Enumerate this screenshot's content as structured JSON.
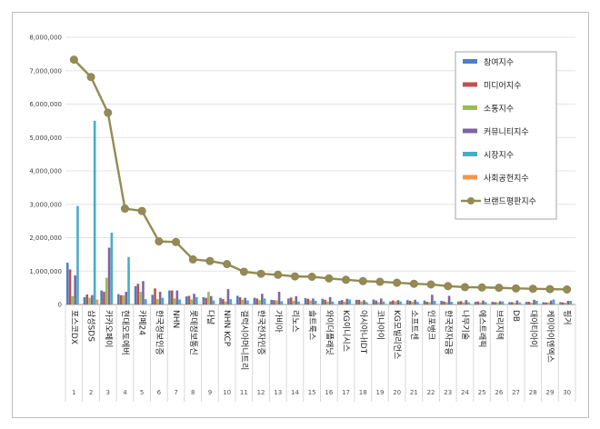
{
  "chart_data": {
    "type": "bar",
    "categories": [
      "포스코DX",
      "삼성SDS",
      "카카오페이",
      "현대오토에버",
      "카페24",
      "한국정보인증",
      "NHN",
      "롯데정보통신",
      "다날",
      "NHN KCP",
      "갤럭시아머니트리",
      "한국전자인증",
      "가비아",
      "리노스",
      "솔트룩스",
      "와이더플래닛",
      "KG이니시스",
      "아시아나IDT",
      "코나아이",
      "KG모빌리언스",
      "소프트센",
      "인포뱅크",
      "한국전자금융",
      "나무기술",
      "에스트래픽",
      "브리지텍",
      "DB",
      "대아티아이",
      "케이아이엔엑스",
      "핑거"
    ],
    "index_labels": [
      "1",
      "2",
      "3",
      "4",
      "5",
      "6",
      "7",
      "8",
      "9",
      "10",
      "11",
      "12",
      "13",
      "14",
      "15",
      "16",
      "17",
      "18",
      "19",
      "20",
      "21",
      "22",
      "23",
      "24",
      "25",
      "26",
      "27",
      "28",
      "29",
      "30"
    ],
    "ylim": [
      0,
      8000000
    ],
    "y_ticks": [
      "0",
      "1,000,000",
      "2,000,000",
      "3,000,000",
      "4,000,000",
      "5,000,000",
      "6,000,000",
      "7,000,000",
      "8,000,000"
    ],
    "grid": true,
    "legend_position": "right",
    "series": [
      {
        "name": "참여지수",
        "color": "#4f81bd",
        "values": [
          1250000,
          220000,
          420000,
          310000,
          550000,
          290000,
          420000,
          240000,
          220000,
          200000,
          260000,
          200000,
          140000,
          180000,
          190000,
          170000,
          110000,
          140000,
          150000,
          90000,
          130000,
          120000,
          110000,
          90000,
          80000,
          80000,
          70000,
          80000,
          70000,
          70000
        ]
      },
      {
        "name": "미디어지수",
        "color": "#c0504d",
        "values": [
          1050000,
          300000,
          380000,
          280000,
          620000,
          480000,
          420000,
          260000,
          200000,
          160000,
          220000,
          180000,
          130000,
          210000,
          170000,
          140000,
          130000,
          140000,
          120000,
          120000,
          110000,
          80000,
          90000,
          100000,
          90000,
          70000,
          70000,
          80000,
          60000,
          60000
        ]
      },
      {
        "name": "소통지수",
        "color": "#9bbb59",
        "values": [
          250000,
          200000,
          800000,
          270000,
          380000,
          160000,
          180000,
          150000,
          380000,
          90000,
          140000,
          130000,
          120000,
          110000,
          120000,
          90000,
          80000,
          90000,
          70000,
          90000,
          80000,
          70000,
          70000,
          60000,
          60000,
          60000,
          50000,
          50000,
          60000,
          50000
        ]
      },
      {
        "name": "커뮤니티지수",
        "color": "#8064a2",
        "values": [
          870000,
          280000,
          1700000,
          380000,
          700000,
          380000,
          420000,
          320000,
          250000,
          460000,
          200000,
          320000,
          380000,
          250000,
          180000,
          220000,
          170000,
          130000,
          180000,
          130000,
          140000,
          290000,
          260000,
          130000,
          120000,
          100000,
          120000,
          140000,
          120000,
          110000
        ]
      },
      {
        "name": "시장지수",
        "color": "#4bacc6",
        "values": [
          2950000,
          5500000,
          2150000,
          1420000,
          160000,
          200000,
          150000,
          220000,
          120000,
          160000,
          120000,
          180000,
          100000,
          90000,
          110000,
          90000,
          150000,
          70000,
          90000,
          90000,
          80000,
          110000,
          80000,
          70000,
          70000,
          90000,
          60000,
          110000,
          150000,
          110000
        ]
      },
      {
        "name": "사회공헌지수",
        "color": "#f79646",
        "values": [
          20000,
          150000,
          10000,
          10000,
          10000,
          10000,
          0,
          10000,
          10000,
          0,
          10000,
          0,
          0,
          0,
          0,
          0,
          0,
          0,
          0,
          0,
          0,
          0,
          0,
          0,
          0,
          0,
          0,
          0,
          0,
          0
        ]
      },
      {
        "name": "브랜드평판지수",
        "color": "#948a54",
        "values": [
          7330000,
          6810000,
          5740000,
          2870000,
          2800000,
          1890000,
          1870000,
          1350000,
          1300000,
          1210000,
          980000,
          920000,
          890000,
          840000,
          830000,
          780000,
          740000,
          700000,
          680000,
          650000,
          620000,
          600000,
          550000,
          520000,
          510000,
          500000,
          480000,
          470000,
          460000,
          450000
        ]
      }
    ]
  }
}
